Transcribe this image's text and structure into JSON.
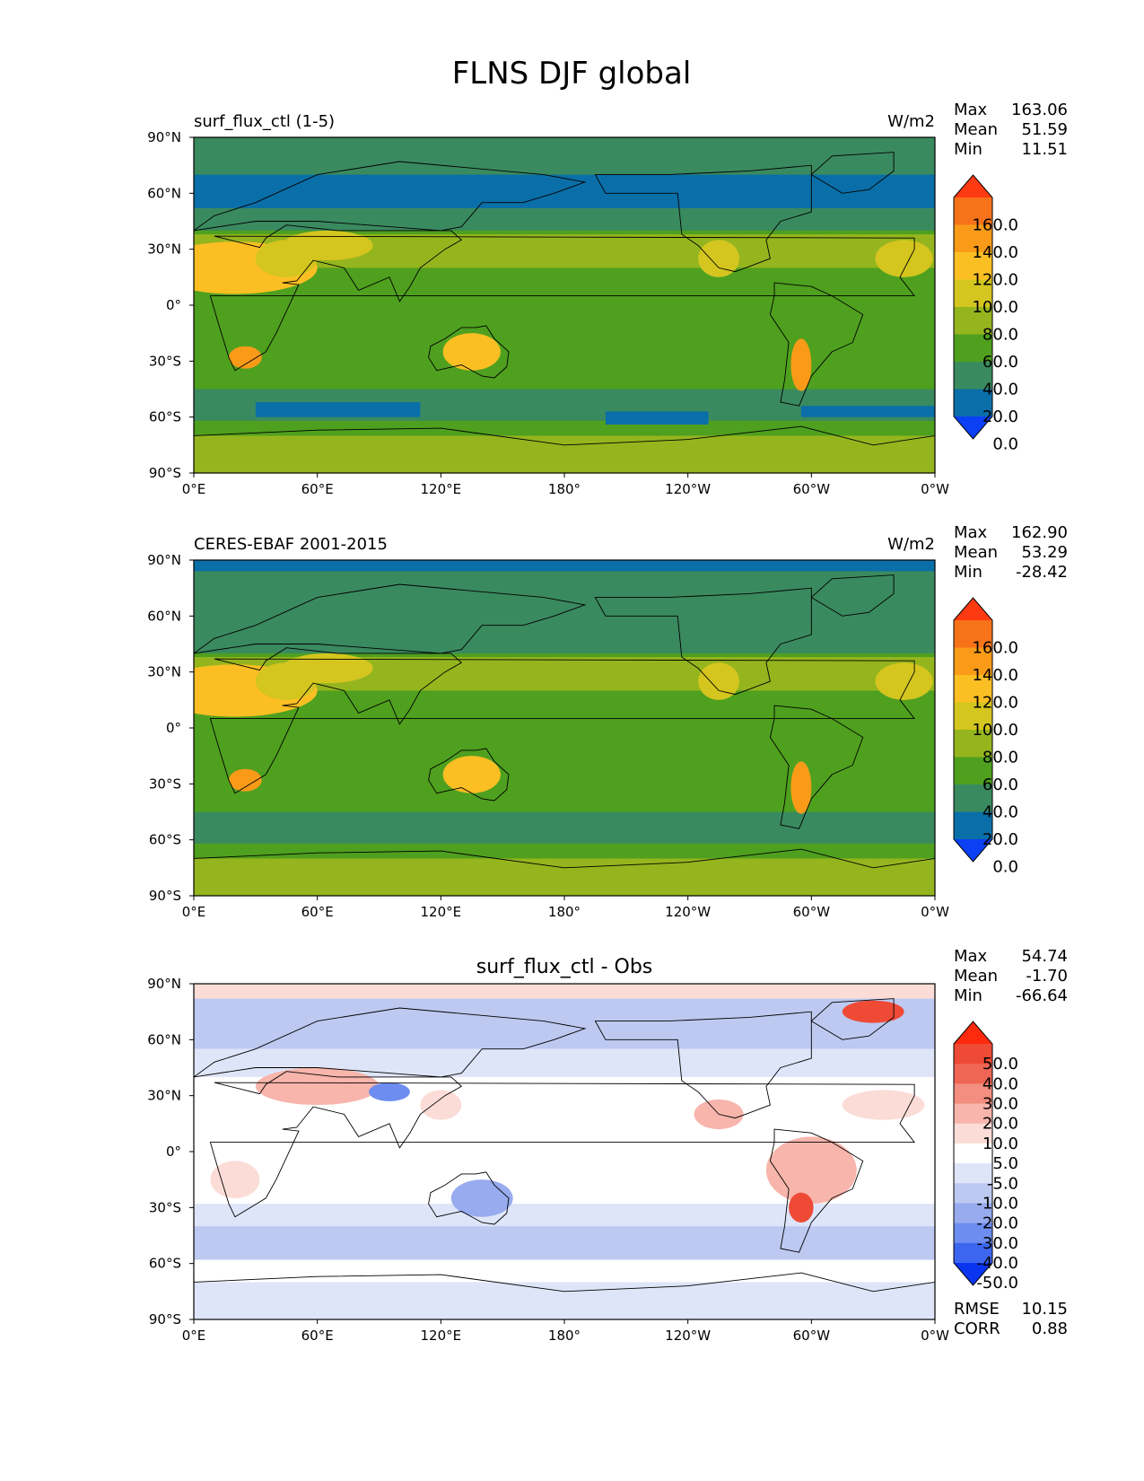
{
  "figure_title": "FLNS DJF global",
  "chart_data": [
    {
      "type": "heatmap",
      "title": "surf_flux_ctl (1-5)",
      "units": "W/m2",
      "stats": [
        {
          "label": "Max",
          "value": "163.06"
        },
        {
          "label": "Mean",
          "value": "51.59"
        },
        {
          "label": "Min",
          "value": "11.51"
        }
      ],
      "x_ticks": [
        "0°E",
        "60°E",
        "120°E",
        "180°",
        "120°W",
        "60°W",
        "0°W"
      ],
      "y_ticks": [
        "90°N",
        "60°N",
        "30°N",
        "0°",
        "30°S",
        "60°S",
        "90°S"
      ],
      "xlim": [
        0,
        360
      ],
      "ylim": [
        -90,
        90
      ],
      "colorbar": {
        "levels": [
          "0.0",
          "20.0",
          "40.0",
          "60.0",
          "80.0",
          "100.0",
          "120.0",
          "140.0",
          "160.0"
        ],
        "colors": [
          "#0b40f5",
          "#0a6fa8",
          "#3a8a5f",
          "#4fa01e",
          "#95b51e",
          "#d4c51f",
          "#fbbf24",
          "#f99b18",
          "#f7731a",
          "#fd3a12"
        ]
      }
    },
    {
      "type": "heatmap",
      "title": "CERES-EBAF 2001-2015",
      "units": "W/m2",
      "stats": [
        {
          "label": "Max",
          "value": "162.90"
        },
        {
          "label": "Mean",
          "value": "53.29"
        },
        {
          "label": "Min",
          "value": "-28.42"
        }
      ],
      "x_ticks": [
        "0°E",
        "60°E",
        "120°E",
        "180°",
        "120°W",
        "60°W",
        "0°W"
      ],
      "y_ticks": [
        "90°N",
        "60°N",
        "30°N",
        "0°",
        "30°S",
        "60°S",
        "90°S"
      ],
      "xlim": [
        0,
        360
      ],
      "ylim": [
        -90,
        90
      ],
      "colorbar": {
        "levels": [
          "0.0",
          "20.0",
          "40.0",
          "60.0",
          "80.0",
          "100.0",
          "120.0",
          "140.0",
          "160.0"
        ],
        "colors": [
          "#0b40f5",
          "#0a6fa8",
          "#3a8a5f",
          "#4fa01e",
          "#95b51e",
          "#d4c51f",
          "#fbbf24",
          "#f99b18",
          "#f7731a",
          "#fd3a12"
        ]
      }
    },
    {
      "type": "heatmap",
      "title": "surf_flux_ctl - Obs",
      "units": "",
      "stats": [
        {
          "label": "Max",
          "value": "54.74"
        },
        {
          "label": "Mean",
          "value": "-1.70"
        },
        {
          "label": "Min",
          "value": "-66.64"
        }
      ],
      "extra_stats": [
        {
          "label": "RMSE",
          "value": "10.15"
        },
        {
          "label": "CORR",
          "value": "0.88"
        }
      ],
      "x_ticks": [
        "0°E",
        "60°E",
        "120°E",
        "180°",
        "120°W",
        "60°W",
        "0°W"
      ],
      "y_ticks": [
        "90°N",
        "60°N",
        "30°N",
        "0°",
        "30°S",
        "60°S",
        "90°S"
      ],
      "xlim": [
        0,
        360
      ],
      "ylim": [
        -90,
        90
      ],
      "colorbar": {
        "levels": [
          "-50.0",
          "-40.0",
          "-30.0",
          "-20.0",
          "-10.0",
          "-5.0",
          "5.0",
          "10.0",
          "20.0",
          "30.0",
          "40.0",
          "50.0"
        ],
        "colors": [
          "#0a35f0",
          "#3d66f0",
          "#6d8df0",
          "#97abee",
          "#bdc9f1",
          "#dfe5f8",
          "#ffffff",
          "#fbdcd7",
          "#f7b5ab",
          "#f38e80",
          "#f06654",
          "#ee4a36",
          "#fd2a0e"
        ]
      }
    }
  ]
}
